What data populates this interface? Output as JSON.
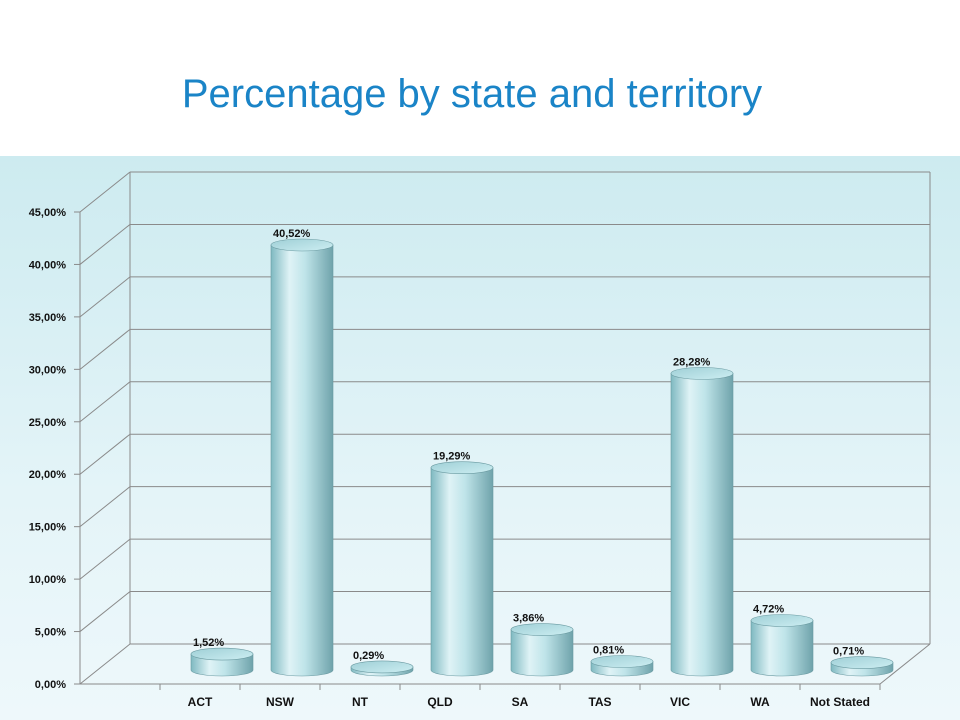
{
  "slide": {
    "title": "Percentage by state and territory"
  },
  "chart_data": {
    "type": "bar",
    "title": "Percentage by state and territory",
    "categories": [
      "ACT",
      "NSW",
      "NT",
      "QLD",
      "SA",
      "TAS",
      "VIC",
      "WA",
      "Not Stated"
    ],
    "values": [
      1.52,
      40.52,
      0.29,
      19.29,
      3.86,
      0.81,
      28.28,
      4.72,
      0.71
    ],
    "data_labels": [
      "1,52%",
      "40,52%",
      "0,29%",
      "19,29%",
      "3,86%",
      "0,81%",
      "28,28%",
      "4,72%",
      "0,71%"
    ],
    "y_ticks": [
      0,
      5,
      10,
      15,
      20,
      25,
      30,
      35,
      40,
      45
    ],
    "y_tick_labels": [
      "0,00%",
      "5,00%",
      "10,00%",
      "15,00%",
      "20,00%",
      "25,00%",
      "30,00%",
      "35,00%",
      "40,00%",
      "45,00%"
    ],
    "ylim": [
      0,
      45
    ],
    "grid": true,
    "style": "3d-cylinder",
    "colors": {
      "bar_light": "#dff3f6",
      "bar_mid": "#a9d8de",
      "bar_dark": "#6fa9b1",
      "bar_top": "#bfe6ea",
      "title": "#1a84c7",
      "grid": "#8a8a8a"
    },
    "xlabel": "",
    "ylabel": ""
  }
}
